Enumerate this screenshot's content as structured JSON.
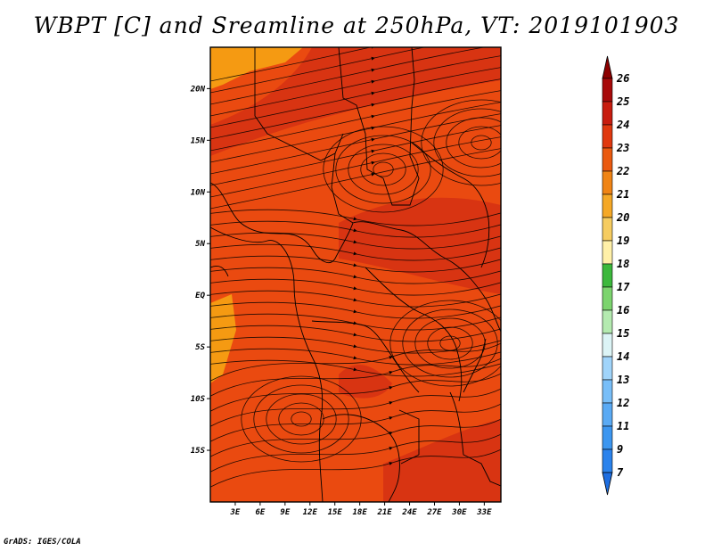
{
  "title": "WBPT [C] and Sreamline at 250hPa, VT: 2019101903",
  "footer": "GrADS: IGES/COLA",
  "map": {
    "lon_range": [
      0,
      35
    ],
    "lat_range": [
      -20,
      24
    ],
    "lat_ticks": [
      {
        "value": 20,
        "label": "20N"
      },
      {
        "value": 15,
        "label": "15N"
      },
      {
        "value": 10,
        "label": "10N"
      },
      {
        "value": 5,
        "label": "5N"
      },
      {
        "value": 0,
        "label": "EQ"
      },
      {
        "value": -5,
        "label": "5S"
      },
      {
        "value": -10,
        "label": "10S"
      },
      {
        "value": -15,
        "label": "15S"
      }
    ],
    "lon_ticks": [
      {
        "value": 3,
        "label": "3E"
      },
      {
        "value": 6,
        "label": "6E"
      },
      {
        "value": 9,
        "label": "9E"
      },
      {
        "value": 12,
        "label": "12E"
      },
      {
        "value": 15,
        "label": "15E"
      },
      {
        "value": 18,
        "label": "18E"
      },
      {
        "value": 21,
        "label": "21E"
      },
      {
        "value": 24,
        "label": "24E"
      },
      {
        "value": 27,
        "label": "27E"
      },
      {
        "value": 30,
        "label": "30E"
      },
      {
        "value": 33,
        "label": "33E"
      }
    ],
    "fill_colors": {
      "c21": "#f59a12",
      "c22": "#f06a0c",
      "c23": "#ea4a10",
      "c24": "#d83412"
    }
  },
  "colorbar": {
    "levels": [
      "7",
      "9",
      "11",
      "12",
      "13",
      "14",
      "15",
      "16",
      "17",
      "18",
      "19",
      "20",
      "21",
      "22",
      "23",
      "24",
      "25",
      "26"
    ],
    "colors": [
      "#1e6ee0",
      "#2a82ec",
      "#3c96f0",
      "#5aaaf4",
      "#78bef8",
      "#a0d4fa",
      "#dcf4f6",
      "#b4eab0",
      "#7cd46e",
      "#3cb83c",
      "#fff0a8",
      "#f6cc60",
      "#f5a826",
      "#f08414",
      "#ea5a10",
      "#e0380e",
      "#c81c0e",
      "#a80a0a",
      "#8c0000"
    ]
  }
}
